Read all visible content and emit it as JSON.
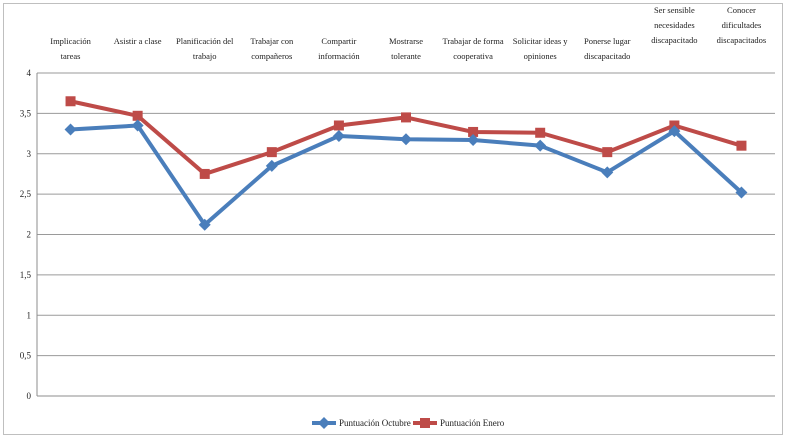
{
  "chart_data": {
    "type": "line",
    "categories": [
      [
        "Implicación",
        "tareas"
      ],
      [
        "Asistir a clase"
      ],
      [
        "Planificación del",
        "trabajo"
      ],
      [
        "Trabajar con",
        "compañeros"
      ],
      [
        "Compartir",
        "información"
      ],
      [
        "Mostrarse",
        "tolerante"
      ],
      [
        "Trabajar de forma",
        "cooperativa"
      ],
      [
        "Solicitar ideas y",
        "opiniones"
      ],
      [
        "Ponerse lugar",
        "discapacitado"
      ],
      [
        "Ser sensible",
        "necesidades",
        "discapacitado"
      ],
      [
        "Conocer",
        "dificultades",
        "discapacitados"
      ]
    ],
    "series": [
      {
        "name": "Puntuación Octubre",
        "color": "#4a7ebb",
        "marker": "diamond",
        "values": [
          3.3,
          3.35,
          2.12,
          2.85,
          3.22,
          3.18,
          3.17,
          3.1,
          2.77,
          3.28,
          2.52
        ]
      },
      {
        "name": "Puntuación Enero",
        "color": "#be4b48",
        "marker": "square",
        "values": [
          3.65,
          3.47,
          2.75,
          3.02,
          3.35,
          3.45,
          3.27,
          3.26,
          3.02,
          3.35,
          3.1
        ]
      }
    ],
    "yticks": [
      "0",
      "0,5",
      "1",
      "1,5",
      "2",
      "2,5",
      "3",
      "3,5",
      "4"
    ],
    "ylim": [
      0,
      4
    ],
    "grid": true,
    "legend_position": "bottom",
    "title": "",
    "xlabel": "",
    "ylabel": ""
  }
}
